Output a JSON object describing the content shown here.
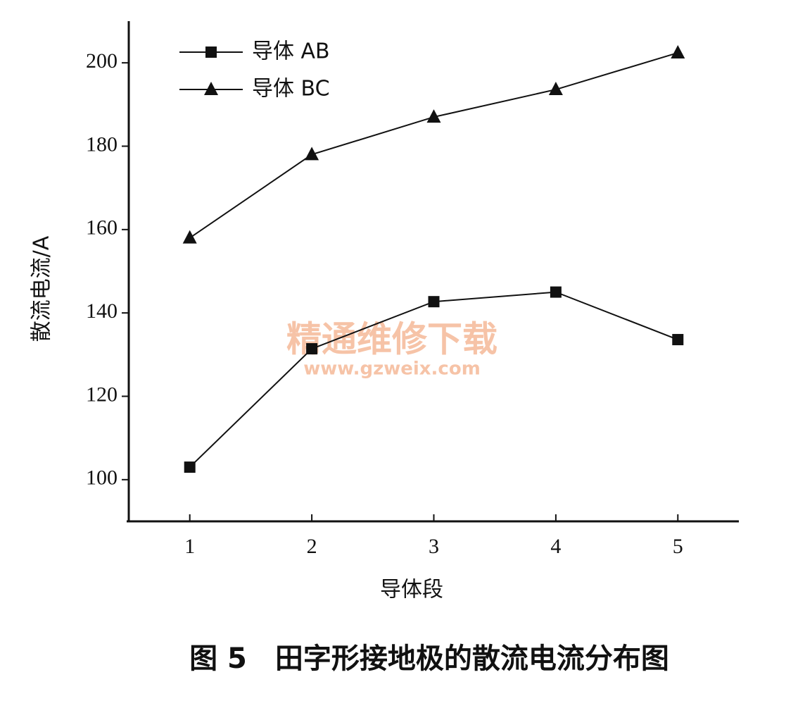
{
  "chart_data": {
    "type": "line",
    "x_label": "导体段",
    "y_label": "散流电流/A",
    "caption": "图 5　田字形接地极的散流电流分布图",
    "watermark": [
      "精通维修下载",
      "www.gzweix.com"
    ],
    "x": [
      1,
      2,
      3,
      4,
      5
    ],
    "xlim": [
      0.5,
      5.5
    ],
    "xticks": [
      1,
      2,
      3,
      4,
      5
    ],
    "ylim": [
      90,
      210
    ],
    "yticks": [
      100,
      120,
      140,
      160,
      180,
      200
    ],
    "grid": false,
    "legend": "upper left",
    "series": [
      {
        "name": "导体 AB",
        "color": "#111111",
        "marker": "square",
        "values": [
          103,
          131.4,
          142.7,
          145,
          133.6
        ]
      },
      {
        "name": "导体 BC",
        "color": "#111111",
        "marker": "triangle",
        "values": [
          158,
          178,
          187,
          193.6,
          202.4
        ]
      }
    ]
  }
}
